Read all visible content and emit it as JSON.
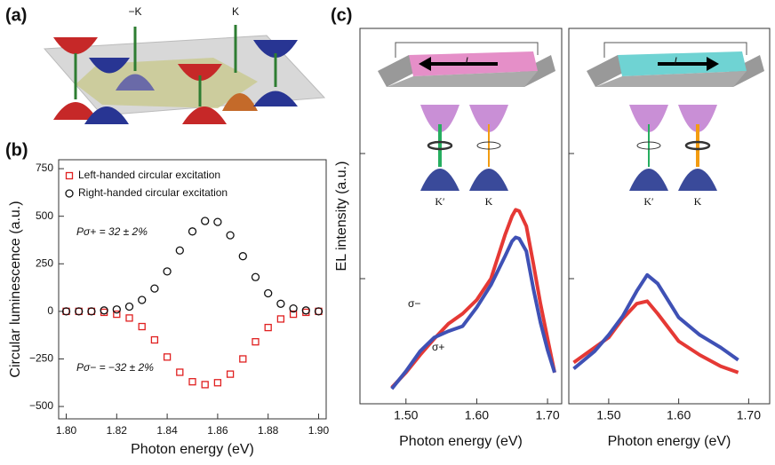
{
  "panel_labels": [
    "(a)",
    "(b)",
    "(c)"
  ],
  "diagram_a": {
    "valley_labels": [
      "−K",
      "K"
    ]
  },
  "insets_c": [
    {
      "labels": [
        "K′",
        "K"
      ],
      "current": "I"
    },
    {
      "labels": [
        "K′",
        "K"
      ],
      "current": "I"
    }
  ],
  "chart_data": [
    {
      "type": "scatter",
      "xlabel": "Photon energy (eV)",
      "ylabel": "Circular luminescence (a.u.)",
      "x": [
        1.8,
        1.805,
        1.81,
        1.815,
        1.82,
        1.825,
        1.83,
        1.835,
        1.84,
        1.845,
        1.85,
        1.855,
        1.86,
        1.865,
        1.87,
        1.875,
        1.88,
        1.885,
        1.89,
        1.895,
        1.9
      ],
      "series": [
        {
          "name": "Left-handed circular excitation",
          "color": "#e02020",
          "marker": "square",
          "values": [
            0,
            0,
            0,
            -5,
            -15,
            -35,
            -80,
            -150,
            -240,
            -320,
            -370,
            -385,
            -375,
            -330,
            -250,
            -160,
            -85,
            -40,
            -15,
            -5,
            0
          ]
        },
        {
          "name": "Right-handed circular excitation",
          "color": "#111111",
          "marker": "circle",
          "values": [
            0,
            0,
            0,
            5,
            10,
            25,
            60,
            120,
            210,
            320,
            420,
            475,
            470,
            400,
            290,
            180,
            95,
            40,
            15,
            5,
            0
          ]
        }
      ],
      "annotations": [
        {
          "text": "Pσ+ = 32 ± 2%",
          "color": "#111111"
        },
        {
          "text": "Pσ− = −32 ± 2%",
          "color": "#111111"
        }
      ],
      "xlim": [
        1.797,
        1.903
      ],
      "ylim": [
        -565,
        797
      ],
      "xticks": [
        {
          "value": 1.8,
          "label": "1.80"
        },
        {
          "value": 1.82,
          "label": "1.82"
        },
        {
          "value": 1.84,
          "label": "1.84"
        },
        {
          "value": 1.86,
          "label": "1.86"
        },
        {
          "value": 1.88,
          "label": "1.88"
        },
        {
          "value": 1.9,
          "label": "1.90"
        }
      ],
      "yticks": [
        {
          "value": -500,
          "label": "−500"
        },
        {
          "value": -250,
          "label": "−250"
        },
        0,
        250,
        500,
        750
      ],
      "ytick_labels": true,
      "legend": "upper left"
    },
    {
      "type": "line",
      "xlabel": "Photon energy (eV)",
      "ylabel": "EL intensity (a.u.)",
      "x": [
        1.48,
        1.5,
        1.52,
        1.54,
        1.56,
        1.58,
        1.6,
        1.62,
        1.64,
        1.65,
        1.655,
        1.66,
        1.67,
        1.68,
        1.69,
        1.7,
        1.71
      ],
      "series": [
        {
          "name": "σ−",
          "color": "#e53935",
          "values": [
            0.13,
            0.25,
            0.39,
            0.52,
            0.64,
            0.72,
            0.83,
            1.0,
            1.35,
            1.5,
            1.55,
            1.54,
            1.42,
            1.12,
            0.8,
            0.52,
            0.25
          ]
        },
        {
          "name": "σ+",
          "color": "#3f51b5",
          "values": [
            0.12,
            0.26,
            0.42,
            0.53,
            0.58,
            0.62,
            0.77,
            0.95,
            1.18,
            1.3,
            1.33,
            1.32,
            1.22,
            0.92,
            0.65,
            0.43,
            0.25
          ]
        }
      ],
      "xlim": [
        1.435,
        1.72
      ],
      "ylim": [
        0,
        3
      ],
      "xticks": [
        {
          "value": 1.5,
          "label": "1.50"
        },
        {
          "value": 1.6,
          "label": "1.60"
        },
        {
          "value": 1.7,
          "label": "1.70"
        }
      ],
      "yticks": [
        1,
        2
      ],
      "ytick_labels": false
    },
    {
      "type": "line",
      "xlabel": "Photon energy (eV)",
      "x": [
        1.45,
        1.48,
        1.5,
        1.52,
        1.54,
        1.555,
        1.57,
        1.6,
        1.63,
        1.66,
        1.685
      ],
      "series": [
        {
          "name": "σ−",
          "color": "#e53935",
          "values": [
            0.33,
            0.45,
            0.53,
            0.68,
            0.8,
            0.82,
            0.72,
            0.5,
            0.39,
            0.3,
            0.25
          ]
        },
        {
          "name": "σ+",
          "color": "#3f51b5",
          "values": [
            0.28,
            0.42,
            0.55,
            0.7,
            0.9,
            1.03,
            0.96,
            0.69,
            0.55,
            0.45,
            0.35
          ]
        }
      ],
      "xlim": [
        1.443,
        1.73
      ],
      "ylim": [
        0,
        3
      ],
      "xticks": [
        {
          "value": 1.5,
          "label": "1.50"
        },
        {
          "value": 1.6,
          "label": "1.60"
        },
        {
          "value": 1.7,
          "label": "1.70"
        }
      ],
      "yticks": [
        1,
        2
      ],
      "ytick_labels": false
    }
  ]
}
